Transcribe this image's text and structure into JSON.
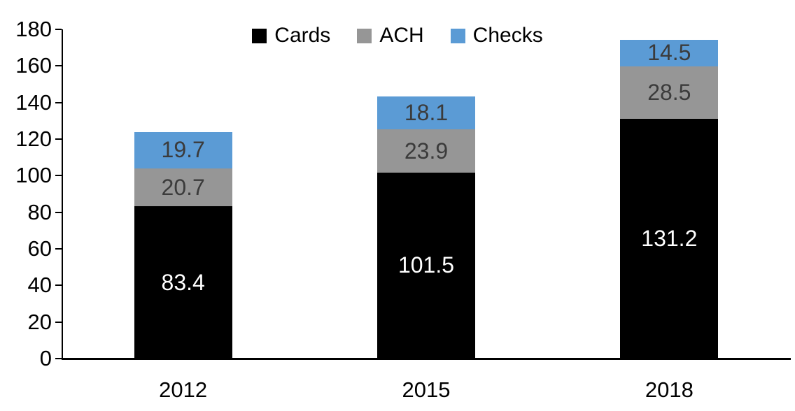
{
  "chart_data": {
    "type": "bar",
    "stacked": true,
    "title": "",
    "categories": [
      "2012",
      "2015",
      "2018"
    ],
    "series": [
      {
        "name": "Cards",
        "color": "#000000",
        "label_color": "#ffffff",
        "values": [
          83.4,
          101.5,
          131.2
        ]
      },
      {
        "name": "ACH",
        "color": "#969696",
        "label_color": "#3b3b3b",
        "values": [
          20.7,
          23.9,
          28.5
        ]
      },
      {
        "name": "Checks",
        "color": "#5b9bd5",
        "label_color": "#3b3b3b",
        "values": [
          19.7,
          18.1,
          14.5
        ]
      }
    ],
    "xlabel": "",
    "ylabel": "",
    "ylim": [
      0,
      180
    ],
    "ytick_step": 20,
    "legend_position": "top",
    "grid": false,
    "axis_color": "#000000"
  }
}
